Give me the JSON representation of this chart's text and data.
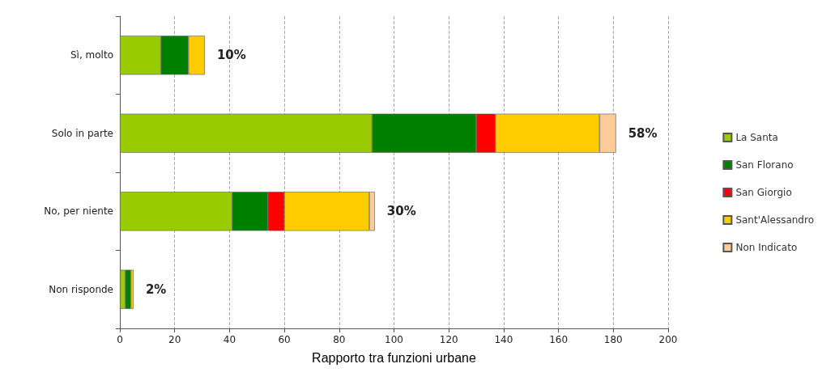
{
  "chart_data": {
    "type": "bar",
    "orientation": "horizontal",
    "stacked": true,
    "xlabel": "Rapporto tra funzioni urbane",
    "categories": [
      "Sì, molto",
      "Solo in parte",
      "No, per niente",
      "Non risponde"
    ],
    "series": [
      {
        "name": "La Santa",
        "color": "#99cc00",
        "values": [
          15,
          92,
          41,
          2
        ]
      },
      {
        "name": "San Florano",
        "color": "#008000",
        "values": [
          10,
          38,
          13,
          2
        ]
      },
      {
        "name": "San Giorgio",
        "color": "#ff0000",
        "values": [
          0,
          7,
          6,
          0
        ]
      },
      {
        "name": "Sant'Alessandro",
        "color": "#ffcc00",
        "values": [
          6,
          38,
          31,
          1
        ]
      },
      {
        "name": "Non Indicato",
        "color": "#ffcc99",
        "values": [
          0,
          6,
          2,
          0
        ]
      }
    ],
    "annotations": [
      {
        "text": "10%",
        "x": 31,
        "y": "Sì, molto"
      },
      {
        "text": "58%",
        "x": 181,
        "y": "Solo in parte"
      },
      {
        "text": "30%",
        "x": 93,
        "y": "No, per niente"
      },
      {
        "text": "2%",
        "x": 5,
        "y": "Non risponde"
      }
    ],
    "xlim": [
      0,
      200
    ],
    "xticks": [
      0,
      20,
      40,
      60,
      80,
      100,
      120,
      140,
      160,
      180,
      200
    ],
    "grid": "x",
    "legend": "right"
  }
}
